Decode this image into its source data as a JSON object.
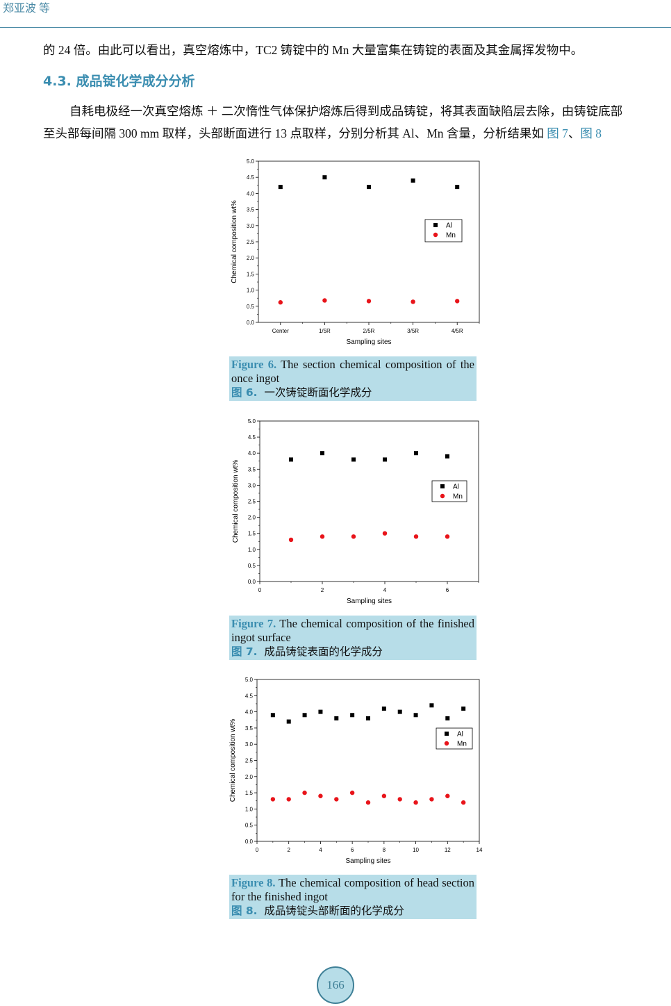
{
  "header": {
    "authors": "郑亚波 等"
  },
  "body": {
    "line1": "的 24 倍。由此可以看出，真空熔炼中，TC2 铸锭中的 Mn 大量富集在铸锭的表面及其金属挥发物中。",
    "section_title": "4.3.  成品锭化学成分分析",
    "para_line1": "自耗电极经一次真空熔炼 ＋ 二次惰性气体保护熔炼后得到成品铸锭，将其表面缺陷层去除，由铸锭底部",
    "para_line2": "至头部每间隔 300 mm 取样，头部断面进行 13 点取样，分别分析其 Al、Mn 含量，分析结果如 ",
    "ref_fig7": "图 7",
    "sep": "、",
    "ref_fig8": "图 8"
  },
  "captions": [
    {
      "label": "Figure 6.",
      "en": " The section chemical composition of the once ingot",
      "zh_label": "图 6.",
      "zh": "  一次铸锭断面化学成分"
    },
    {
      "label": "Figure 7.",
      "en": " The chemical composition of the finished ingot surface",
      "zh_label": "图 7.",
      "zh": "  成品铸锭表面的化学成分"
    },
    {
      "label": "Figure 8.",
      "en": " The chemical composition of head section for the finished ingot",
      "zh_label": "图 8.",
      "zh": "  成品铸锭头部断面的化学成分"
    }
  ],
  "page_number": "166",
  "colors": {
    "accent": "#3a8db0",
    "caption_bg": "#b7dde8",
    "al": "#000000",
    "mn": "#e8141a"
  },
  "chart_data": [
    {
      "type": "scatter",
      "xlabel": "Sampling sites",
      "ylabel": "Chemical composition wt%",
      "categories": [
        "Center",
        "1/5R",
        "2/5R",
        "3/5R",
        "4/5R"
      ],
      "ylim": [
        0,
        5
      ],
      "yticks": [
        "0.0",
        "0.5",
        "1.0",
        "1.5",
        "2.0",
        "2.5",
        "3.0",
        "3.5",
        "4.0",
        "4.5",
        "5.0"
      ],
      "legend": "right",
      "series": [
        {
          "name": "Al",
          "marker": "square",
          "values": [
            4.2,
            4.5,
            4.2,
            4.4,
            4.2
          ]
        },
        {
          "name": "Mn",
          "marker": "circle",
          "values": [
            0.62,
            0.68,
            0.66,
            0.64,
            0.66
          ]
        }
      ]
    },
    {
      "type": "scatter",
      "xlabel": "Sampling sites",
      "ylabel": "Chemical composition wt%",
      "x": [
        1,
        2,
        3,
        4,
        5,
        6
      ],
      "xlim": [
        0,
        7
      ],
      "xticks": [
        "0",
        "2",
        "4",
        "6"
      ],
      "ylim": [
        0,
        5
      ],
      "yticks": [
        "0.0",
        "0.5",
        "1.0",
        "1.5",
        "2.0",
        "2.5",
        "3.0",
        "3.5",
        "4.0",
        "4.5",
        "5.0"
      ],
      "legend": "right",
      "series": [
        {
          "name": "Al",
          "marker": "square",
          "values": [
            3.8,
            4.0,
            3.8,
            3.8,
            4.0,
            3.9
          ]
        },
        {
          "name": "Mn",
          "marker": "circle",
          "values": [
            1.3,
            1.4,
            1.4,
            1.5,
            1.4,
            1.4
          ]
        }
      ]
    },
    {
      "type": "scatter",
      "xlabel": "Sampling sites",
      "ylabel": "Chemical composition wt%",
      "x": [
        1,
        2,
        3,
        4,
        5,
        6,
        7,
        8,
        9,
        10,
        11,
        12,
        13
      ],
      "xlim": [
        0,
        14
      ],
      "xticks": [
        "0",
        "2",
        "4",
        "6",
        "8",
        "10",
        "12",
        "14"
      ],
      "ylim": [
        0,
        5
      ],
      "yticks": [
        "0.0",
        "0.5",
        "1.0",
        "1.5",
        "2.0",
        "2.5",
        "3.0",
        "3.5",
        "4.0",
        "4.5",
        "5.0"
      ],
      "legend": "right",
      "series": [
        {
          "name": "Al",
          "marker": "square",
          "values": [
            3.9,
            3.7,
            3.9,
            4.0,
            3.8,
            3.9,
            3.8,
            4.1,
            4.0,
            3.9,
            4.2,
            3.8,
            4.1
          ]
        },
        {
          "name": "Mn",
          "marker": "circle",
          "values": [
            1.3,
            1.3,
            1.5,
            1.4,
            1.3,
            1.5,
            1.2,
            1.4,
            1.3,
            1.2,
            1.3,
            1.4,
            1.2
          ]
        }
      ]
    }
  ]
}
